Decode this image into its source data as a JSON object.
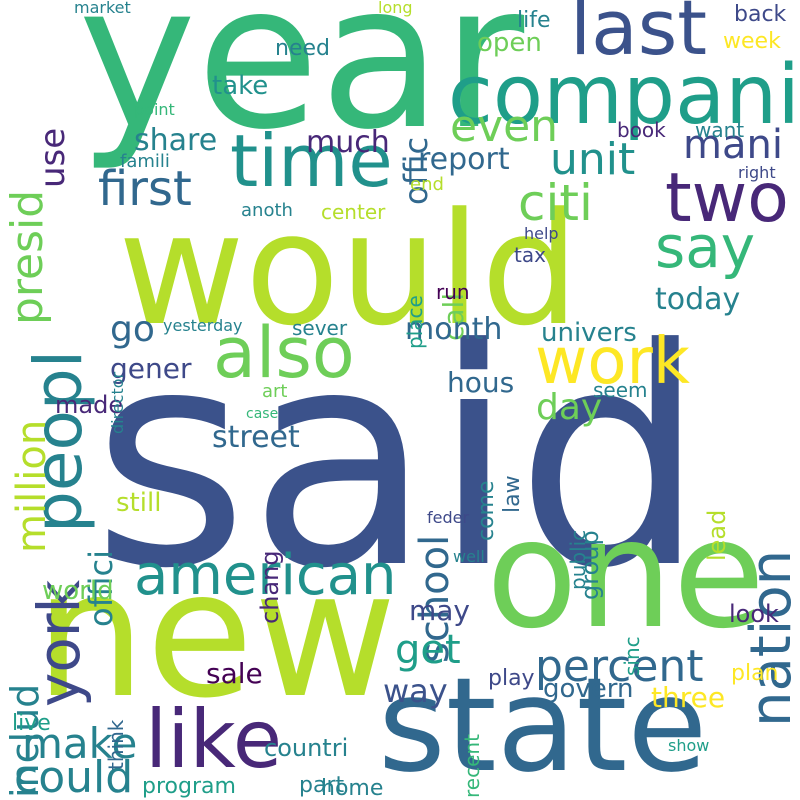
{
  "words": [
    {
      "text": "said",
      "color": "#3b528b",
      "vertical": false
    },
    {
      "text": "would",
      "color": "#b5de2b",
      "vertical": false
    },
    {
      "text": "year",
      "color": "#35b779",
      "vertical": false
    },
    {
      "text": "new",
      "color": "#b5de2b",
      "vertical": false
    },
    {
      "text": "one",
      "color": "#6ece58",
      "vertical": false
    },
    {
      "text": "state",
      "color": "#31688e",
      "vertical": false
    },
    {
      "text": "compani",
      "color": "#1f9e89",
      "vertical": false
    },
    {
      "text": "last",
      "color": "#3b528b",
      "vertical": false
    },
    {
      "text": "time",
      "color": "#21918c",
      "vertical": false
    },
    {
      "text": "two",
      "color": "#482878",
      "vertical": false
    },
    {
      "text": "say",
      "color": "#35b779",
      "vertical": false
    },
    {
      "text": "work",
      "color": "#fde725",
      "vertical": false
    },
    {
      "text": "also",
      "color": "#6ece58",
      "vertical": false
    },
    {
      "text": "american",
      "color": "#21918c",
      "vertical": false
    },
    {
      "text": "like",
      "color": "#482878",
      "vertical": false
    },
    {
      "text": "peopl",
      "color": "#26828e",
      "vertical": true
    },
    {
      "text": "york",
      "color": "#3e4989",
      "vertical": true
    },
    {
      "text": "nation",
      "color": "#31688e",
      "vertical": true
    },
    {
      "text": "first",
      "color": "#31688e",
      "vertical": false
    },
    {
      "text": "presid",
      "color": "#6ece58",
      "vertical": true
    },
    {
      "text": "citi",
      "color": "#6ece58",
      "vertical": false
    },
    {
      "text": "unit",
      "color": "#21918c",
      "vertical": false
    },
    {
      "text": "even",
      "color": "#6ece58",
      "vertical": false
    },
    {
      "text": "mani",
      "color": "#3e4989",
      "vertical": false
    },
    {
      "text": "percent",
      "color": "#31688e",
      "vertical": false
    },
    {
      "text": "could",
      "color": "#26828e",
      "vertical": false
    },
    {
      "text": "make",
      "color": "#26828e",
      "vertical": false
    },
    {
      "text": "million",
      "color": "#b5de2b",
      "vertical": true
    },
    {
      "text": "includ",
      "color": "#26828e",
      "vertical": true
    },
    {
      "text": "school",
      "color": "#31688e",
      "vertical": true
    },
    {
      "text": "go",
      "color": "#31688e",
      "vertical": false
    },
    {
      "text": "day",
      "color": "#6ece58",
      "vertical": false
    },
    {
      "text": "get",
      "color": "#1f9e89",
      "vertical": false
    },
    {
      "text": "way",
      "color": "#3b528b",
      "vertical": false
    },
    {
      "text": "today",
      "color": "#26828e",
      "vertical": false
    },
    {
      "text": "street",
      "color": "#31688e",
      "vertical": false
    },
    {
      "text": "offici",
      "color": "#26828e",
      "vertical": true
    },
    {
      "text": "use",
      "color": "#482878",
      "vertical": true
    },
    {
      "text": "offic",
      "color": "#31688e",
      "vertical": true
    },
    {
      "text": "call",
      "color": "#6ece58",
      "vertical": true
    },
    {
      "text": "report",
      "color": "#31688e",
      "vertical": false
    },
    {
      "text": "share",
      "color": "#26828e",
      "vertical": false
    },
    {
      "text": "much",
      "color": "#482878",
      "vertical": false
    },
    {
      "text": "month",
      "color": "#31688e",
      "vertical": false
    },
    {
      "text": "univers",
      "color": "#26828e",
      "vertical": false
    },
    {
      "text": "gener",
      "color": "#3e4989",
      "vertical": false
    },
    {
      "text": "hous",
      "color": "#31688e",
      "vertical": false
    },
    {
      "text": "made",
      "color": "#482878",
      "vertical": false
    },
    {
      "text": "world",
      "color": "#6ece58",
      "vertical": false
    },
    {
      "text": "may",
      "color": "#3e4989",
      "vertical": false
    },
    {
      "text": "sale",
      "color": "#440154",
      "vertical": false
    },
    {
      "text": "three",
      "color": "#fde725",
      "vertical": false
    },
    {
      "text": "govern",
      "color": "#31688e",
      "vertical": false
    },
    {
      "text": "countri",
      "color": "#26828e",
      "vertical": false
    },
    {
      "text": "group",
      "color": "#26828e",
      "vertical": true
    },
    {
      "text": "chang",
      "color": "#482878",
      "vertical": true
    },
    {
      "text": "still",
      "color": "#b5de2b",
      "vertical": false
    },
    {
      "text": "take",
      "color": "#21918c",
      "vertical": false
    },
    {
      "text": "open",
      "color": "#6ece58",
      "vertical": false
    },
    {
      "text": "week",
      "color": "#fde725",
      "vertical": false
    },
    {
      "text": "need",
      "color": "#26828e",
      "vertical": false
    },
    {
      "text": "life",
      "color": "#26828e",
      "vertical": false
    },
    {
      "text": "back",
      "color": "#3e4989",
      "vertical": false
    },
    {
      "text": "book",
      "color": "#482878",
      "vertical": false
    },
    {
      "text": "want",
      "color": "#26828e",
      "vertical": false
    },
    {
      "text": "end",
      "color": "#b5de2b",
      "vertical": false
    },
    {
      "text": "center",
      "color": "#b5de2b",
      "vertical": false
    },
    {
      "text": "anoth",
      "color": "#26828e",
      "vertical": false
    },
    {
      "text": "run",
      "color": "#440154",
      "vertical": false
    },
    {
      "text": "tax",
      "color": "#3e4989",
      "vertical": false
    },
    {
      "text": "sever",
      "color": "#26828e",
      "vertical": false
    },
    {
      "text": "law",
      "color": "#31688e",
      "vertical": true
    },
    {
      "text": "come",
      "color": "#26828e",
      "vertical": true
    },
    {
      "text": "seem",
      "color": "#26828e",
      "vertical": false
    },
    {
      "text": "lead",
      "color": "#b5de2b",
      "vertical": true
    },
    {
      "text": "look",
      "color": "#482878",
      "vertical": false
    },
    {
      "text": "plan",
      "color": "#fde725",
      "vertical": false
    },
    {
      "text": "play",
      "color": "#3e4989",
      "vertical": false
    },
    {
      "text": "part",
      "color": "#26828e",
      "vertical": false
    },
    {
      "text": "home",
      "color": "#26828e",
      "vertical": false
    },
    {
      "text": "program",
      "color": "#1f9e89",
      "vertical": false
    },
    {
      "text": "live",
      "color": "#1f9e89",
      "vertical": false
    },
    {
      "text": "think",
      "color": "#31688e",
      "vertical": true
    },
    {
      "text": "recent",
      "color": "#35b779",
      "vertical": true
    },
    {
      "text": "public",
      "color": "#26828e",
      "vertical": true
    },
    {
      "text": "sinc",
      "color": "#1f9e89",
      "vertical": true
    },
    {
      "text": "place",
      "color": "#1f9e89",
      "vertical": true
    },
    {
      "text": "director",
      "color": "#26828e",
      "vertical": true
    },
    {
      "text": "famili",
      "color": "#26828e",
      "vertical": false
    },
    {
      "text": "yesterday",
      "color": "#26828e",
      "vertical": false
    },
    {
      "text": "art",
      "color": "#6ece58",
      "vertical": false
    },
    {
      "text": "point",
      "color": "#35b779",
      "vertical": false
    },
    {
      "text": "market",
      "color": "#26828e",
      "vertical": false
    },
    {
      "text": "long",
      "color": "#b5de2b",
      "vertical": false
    },
    {
      "text": "help",
      "color": "#3e4989",
      "vertical": false
    },
    {
      "text": "right",
      "color": "#3e4989",
      "vertical": false
    },
    {
      "text": "case",
      "color": "#35b779",
      "vertical": false
    },
    {
      "text": "feder",
      "color": "#3e4989",
      "vertical": false
    },
    {
      "text": "well",
      "color": "#26828e",
      "vertical": false
    },
    {
      "text": "show",
      "color": "#1f9e89",
      "vertical": false
    }
  ]
}
